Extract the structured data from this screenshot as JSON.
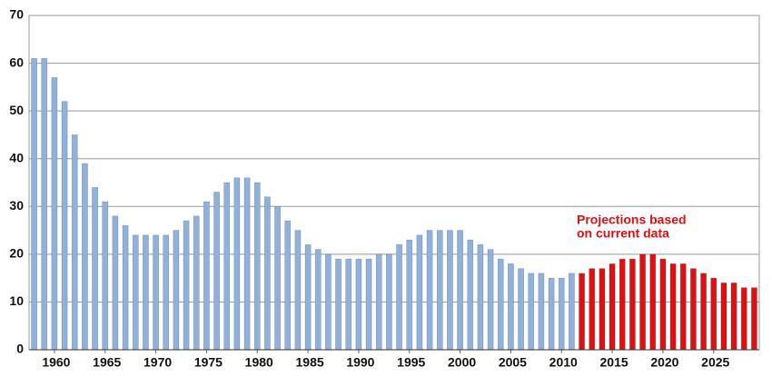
{
  "chart_data": {
    "type": "bar",
    "annotation": [
      "Projections based",
      "on current data"
    ],
    "annotation_color": "#e01010",
    "x": [
      1958,
      1959,
      1960,
      1961,
      1962,
      1963,
      1964,
      1965,
      1966,
      1967,
      1968,
      1969,
      1970,
      1971,
      1972,
      1973,
      1974,
      1975,
      1976,
      1977,
      1978,
      1979,
      1980,
      1981,
      1982,
      1983,
      1984,
      1985,
      1986,
      1987,
      1988,
      1989,
      1990,
      1991,
      1992,
      1993,
      1994,
      1995,
      1996,
      1997,
      1998,
      1999,
      2000,
      2001,
      2002,
      2003,
      2004,
      2005,
      2006,
      2007,
      2008,
      2009,
      2010,
      2011,
      2012,
      2013,
      2014,
      2015,
      2016,
      2017,
      2018,
      2019,
      2020,
      2021,
      2022,
      2023,
      2024,
      2025,
      2026,
      2027,
      2028,
      2029
    ],
    "series": [
      {
        "color": "#8fb1da",
        "values": [
          61,
          61,
          57,
          52,
          45,
          39,
          34,
          31,
          28,
          26,
          24,
          24,
          24,
          24,
          25,
          27,
          28,
          31,
          33,
          35,
          36,
          36,
          35,
          32,
          30,
          27,
          25,
          22,
          21,
          20,
          19,
          19,
          19,
          19,
          20,
          20,
          22,
          23,
          24,
          25,
          25,
          25,
          25,
          23,
          22,
          21,
          19,
          18,
          17,
          16,
          16,
          15,
          15,
          16,
          null,
          null,
          null,
          null,
          null,
          null,
          null,
          null,
          null,
          null,
          null,
          null,
          null,
          null,
          null,
          null,
          null,
          null
        ]
      },
      {
        "color": "#e01010",
        "values": [
          null,
          null,
          null,
          null,
          null,
          null,
          null,
          null,
          null,
          null,
          null,
          null,
          null,
          null,
          null,
          null,
          null,
          null,
          null,
          null,
          null,
          null,
          null,
          null,
          null,
          null,
          null,
          null,
          null,
          null,
          null,
          null,
          null,
          null,
          null,
          null,
          null,
          null,
          null,
          null,
          null,
          null,
          null,
          null,
          null,
          null,
          null,
          null,
          null,
          null,
          null,
          null,
          null,
          null,
          16,
          17,
          17,
          18,
          19,
          19,
          20,
          20,
          19,
          18,
          18,
          17,
          16,
          15,
          14,
          14,
          13,
          13
        ]
      }
    ],
    "xlim": [
      1957.5,
      2029.5
    ],
    "xticks": [
      1960,
      1965,
      1970,
      1975,
      1980,
      1985,
      1990,
      1995,
      2000,
      2005,
      2010,
      2015,
      2020,
      2025
    ],
    "ylim": [
      0,
      70
    ],
    "yticks": [
      0,
      10,
      20,
      30,
      40,
      50,
      60,
      70
    ],
    "grid": true
  }
}
